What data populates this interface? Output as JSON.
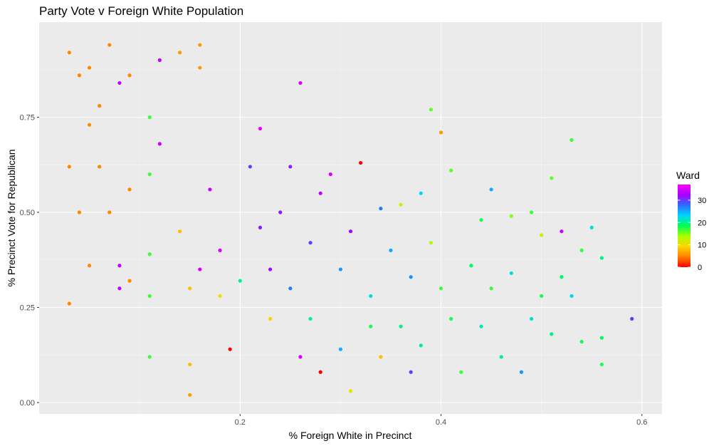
{
  "chart_data": {
    "type": "scatter",
    "title": "Party Vote v Foreign White Population",
    "xlabel": "% Foreign White in Precinct",
    "ylabel": "% Precinct Vote for Republican",
    "xlim": [
      0.0,
      0.62
    ],
    "ylim": [
      -0.03,
      1.0
    ],
    "x_ticks": [
      0.2,
      0.4,
      0.6
    ],
    "x_tick_labels": [
      "0.2",
      "0.4",
      "0.6"
    ],
    "y_ticks": [
      0.0,
      0.25,
      0.5,
      0.75
    ],
    "y_tick_labels": [
      "0.00",
      "0.25",
      "0.50",
      "0.75"
    ],
    "grid": true,
    "legend": {
      "title": "Ward",
      "placement": "right",
      "min": 0,
      "max": 37,
      "ticks": [
        0,
        10,
        20,
        30
      ],
      "tick_labels": [
        "0",
        "10",
        "20",
        "30"
      ],
      "gradient_colors": [
        "#ff0000",
        "#ff8000",
        "#ffd500",
        "#aaff00",
        "#00ff55",
        "#00d5ff",
        "#2b6cff",
        "#aa00ff",
        "#ff00ff"
      ]
    },
    "point_color_scale": "ward value mapped from red (0) through orange, yellow, green, cyan, blue to magenta (37)",
    "points_note": "approximately 1900 precincts plotted; representative sample listed below",
    "points": [
      [
        0.03,
        0.92,
        5
      ],
      [
        0.04,
        0.86,
        5
      ],
      [
        0.05,
        0.88,
        5
      ],
      [
        0.06,
        0.78,
        5
      ],
      [
        0.07,
        0.94,
        5
      ],
      [
        0.03,
        0.62,
        5
      ],
      [
        0.04,
        0.5,
        5
      ],
      [
        0.05,
        0.36,
        5
      ],
      [
        0.03,
        0.26,
        5
      ],
      [
        0.06,
        0.62,
        5
      ],
      [
        0.09,
        0.86,
        5
      ],
      [
        0.09,
        0.56,
        5
      ],
      [
        0.09,
        0.32,
        5
      ],
      [
        0.07,
        0.5,
        5
      ],
      [
        0.05,
        0.73,
        5
      ],
      [
        0.08,
        0.84,
        34
      ],
      [
        0.08,
        0.36,
        34
      ],
      [
        0.08,
        0.3,
        34
      ],
      [
        0.11,
        0.75,
        17
      ],
      [
        0.11,
        0.6,
        17
      ],
      [
        0.11,
        0.39,
        17
      ],
      [
        0.11,
        0.28,
        17
      ],
      [
        0.11,
        0.12,
        17
      ],
      [
        0.12,
        0.9,
        34
      ],
      [
        0.14,
        0.92,
        6
      ],
      [
        0.16,
        0.94,
        6
      ],
      [
        0.16,
        0.88,
        6
      ],
      [
        0.12,
        0.68,
        34
      ],
      [
        0.14,
        0.45,
        8
      ],
      [
        0.15,
        0.3,
        8
      ],
      [
        0.15,
        0.1,
        8
      ],
      [
        0.15,
        0.02,
        6
      ],
      [
        0.16,
        0.35,
        35
      ],
      [
        0.17,
        0.56,
        34
      ],
      [
        0.18,
        0.4,
        35
      ],
      [
        0.18,
        0.28,
        10
      ],
      [
        0.19,
        0.14,
        0
      ],
      [
        0.2,
        0.32,
        20
      ],
      [
        0.21,
        0.62,
        30
      ],
      [
        0.22,
        0.46,
        31
      ],
      [
        0.22,
        0.72,
        36
      ],
      [
        0.23,
        0.35,
        32
      ],
      [
        0.23,
        0.22,
        9
      ],
      [
        0.24,
        0.5,
        31
      ],
      [
        0.25,
        0.62,
        31
      ],
      [
        0.25,
        0.3,
        27
      ],
      [
        0.26,
        0.12,
        35
      ],
      [
        0.26,
        0.84,
        35
      ],
      [
        0.27,
        0.42,
        30
      ],
      [
        0.27,
        0.22,
        20
      ],
      [
        0.28,
        0.55,
        33
      ],
      [
        0.28,
        0.08,
        0
      ],
      [
        0.29,
        0.6,
        35
      ],
      [
        0.3,
        0.35,
        26
      ],
      [
        0.3,
        0.14,
        25
      ],
      [
        0.31,
        0.45,
        32
      ],
      [
        0.31,
        0.03,
        10
      ],
      [
        0.32,
        0.63,
        0
      ],
      [
        0.33,
        0.28,
        22
      ],
      [
        0.33,
        0.2,
        18
      ],
      [
        0.34,
        0.51,
        27
      ],
      [
        0.34,
        0.12,
        8
      ],
      [
        0.35,
        0.4,
        25
      ],
      [
        0.36,
        0.52,
        12
      ],
      [
        0.36,
        0.2,
        20
      ],
      [
        0.37,
        0.33,
        26
      ],
      [
        0.37,
        0.08,
        30
      ],
      [
        0.38,
        0.55,
        23
      ],
      [
        0.38,
        0.15,
        21
      ],
      [
        0.39,
        0.42,
        14
      ],
      [
        0.39,
        0.77,
        16
      ],
      [
        0.4,
        0.3,
        17
      ],
      [
        0.4,
        0.71,
        6
      ],
      [
        0.41,
        0.61,
        16
      ],
      [
        0.41,
        0.22,
        18
      ],
      [
        0.42,
        0.08,
        17
      ],
      [
        0.43,
        0.36,
        19
      ],
      [
        0.44,
        0.48,
        18
      ],
      [
        0.44,
        0.2,
        21
      ],
      [
        0.45,
        0.56,
        25
      ],
      [
        0.45,
        0.3,
        17
      ],
      [
        0.46,
        0.12,
        20
      ],
      [
        0.47,
        0.49,
        15
      ],
      [
        0.47,
        0.34,
        22
      ],
      [
        0.48,
        0.08,
        26
      ],
      [
        0.49,
        0.5,
        17
      ],
      [
        0.49,
        0.22,
        22
      ],
      [
        0.5,
        0.44,
        12
      ],
      [
        0.5,
        0.28,
        18
      ],
      [
        0.51,
        0.59,
        16
      ],
      [
        0.51,
        0.18,
        20
      ],
      [
        0.52,
        0.45,
        34
      ],
      [
        0.52,
        0.33,
        19
      ],
      [
        0.53,
        0.69,
        17
      ],
      [
        0.53,
        0.28,
        23
      ],
      [
        0.54,
        0.4,
        17
      ],
      [
        0.54,
        0.16,
        18
      ],
      [
        0.55,
        0.46,
        22
      ],
      [
        0.56,
        0.38,
        20
      ],
      [
        0.56,
        0.1,
        18
      ],
      [
        0.56,
        0.17,
        19
      ],
      [
        0.59,
        0.22,
        30
      ]
    ]
  }
}
